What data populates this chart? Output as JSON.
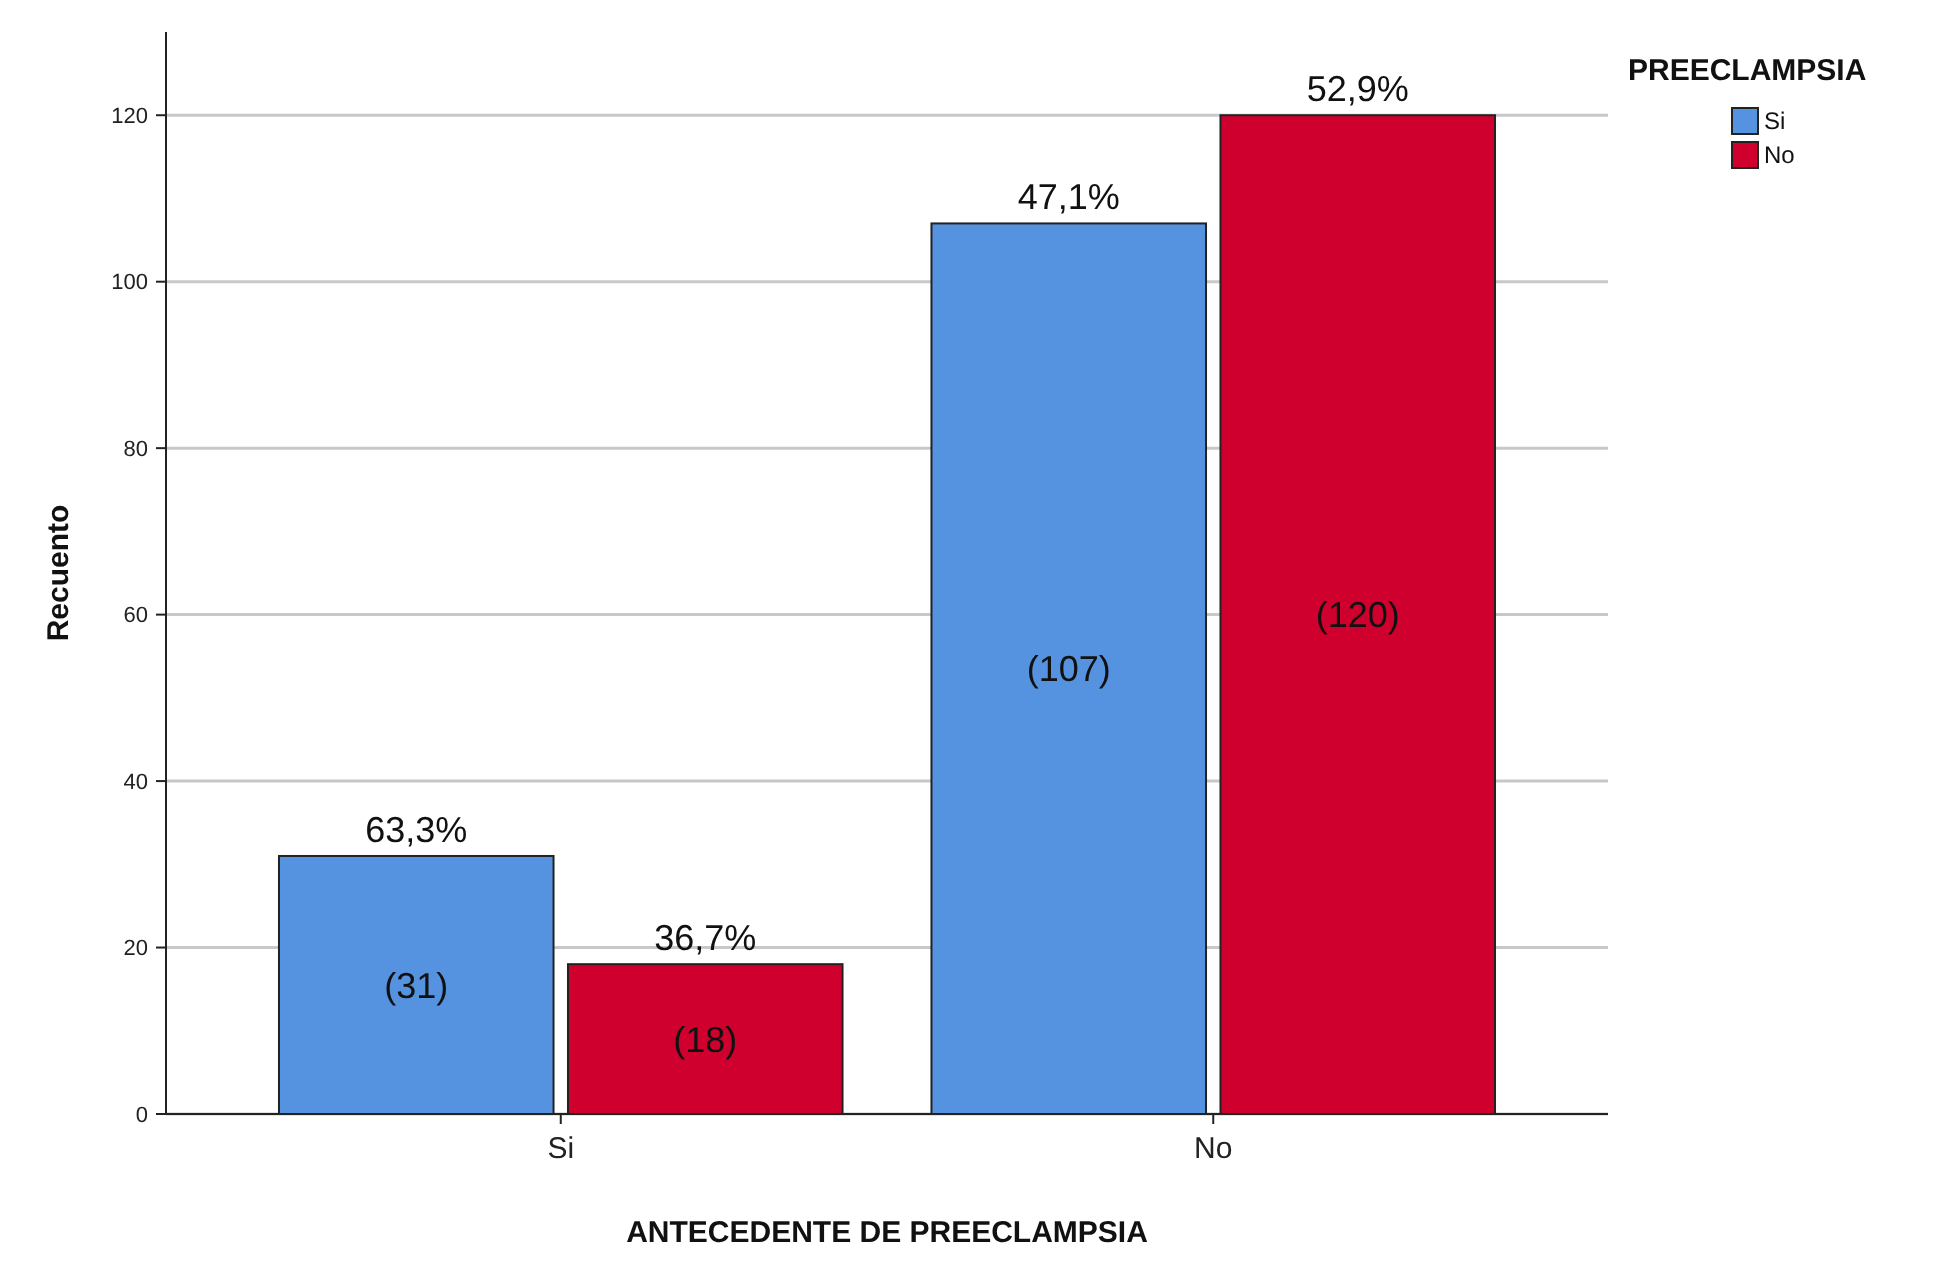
{
  "chart_data": {
    "type": "bar",
    "xlabel": "ANTECEDENTE DE PREECLAMPSIA",
    "ylabel": "Recuento",
    "legend_title": "PREECLAMPSIA",
    "categories": [
      "Si",
      "No"
    ],
    "series": [
      {
        "name": "Si",
        "color": "#5592e0",
        "values": [
          31,
          107
        ],
        "value_labels": [
          "(31)",
          "(107)"
        ]
      },
      {
        "name": "No",
        "color": "#d0002e",
        "values": [
          18,
          120
        ],
        "value_labels": [
          "(18)",
          "(120)"
        ]
      }
    ],
    "ylim": [
      0,
      130
    ],
    "yticks": [
      0,
      20,
      40,
      60,
      80,
      100,
      120
    ],
    "grid": "y",
    "legend": "top right",
    "annotations": [
      {
        "text": "63,3%",
        "x": "Si",
        "y": 31
      },
      {
        "text": "36,7%",
        "x": "Si",
        "y": 18
      },
      {
        "text": "47,1%",
        "x": "No",
        "y": 107
      },
      {
        "text": "52,9%",
        "x": "No",
        "y": 120
      }
    ]
  }
}
